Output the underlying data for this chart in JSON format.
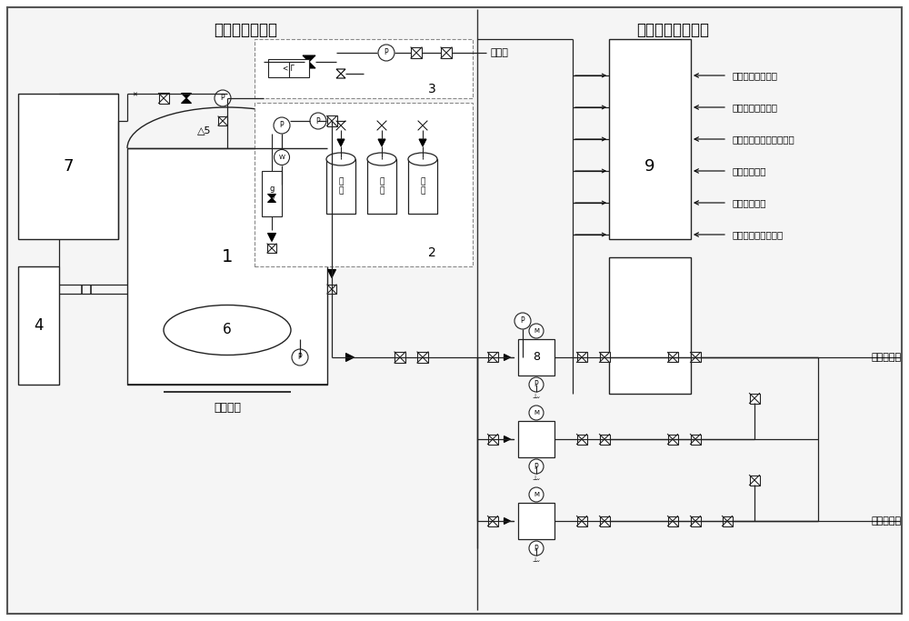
{
  "title_left": "富氧水制取系统",
  "title_right": "加药自动控制系统",
  "bg_color": "#f0f0f0",
  "line_color": "#222222",
  "dashed_color": "#888888",
  "label_1": "1",
  "label_2": "2",
  "label_3": "3",
  "label_4": "4",
  "label_5": "5",
  "label_6": "6",
  "label_7": "7",
  "label_8": "8",
  "label_9": "9",
  "label_zhicheng": "支撑底座",
  "label_ningjie": "凝结水",
  "label_gaojia": "高加蒸汽侧",
  "label_jishui": "给水泵入口",
  "oxygen_labels": [
    "氧\n瓶",
    "氧\n瓶",
    "氧\n瓶"
  ],
  "signals": [
    "高加疏水溶氧信号",
    "高加疏水流量信号",
    "高加疏水氧化还原电位值",
    "给水流量信号",
    "给水溶氧信号",
    "给水氧化还原电位值"
  ]
}
